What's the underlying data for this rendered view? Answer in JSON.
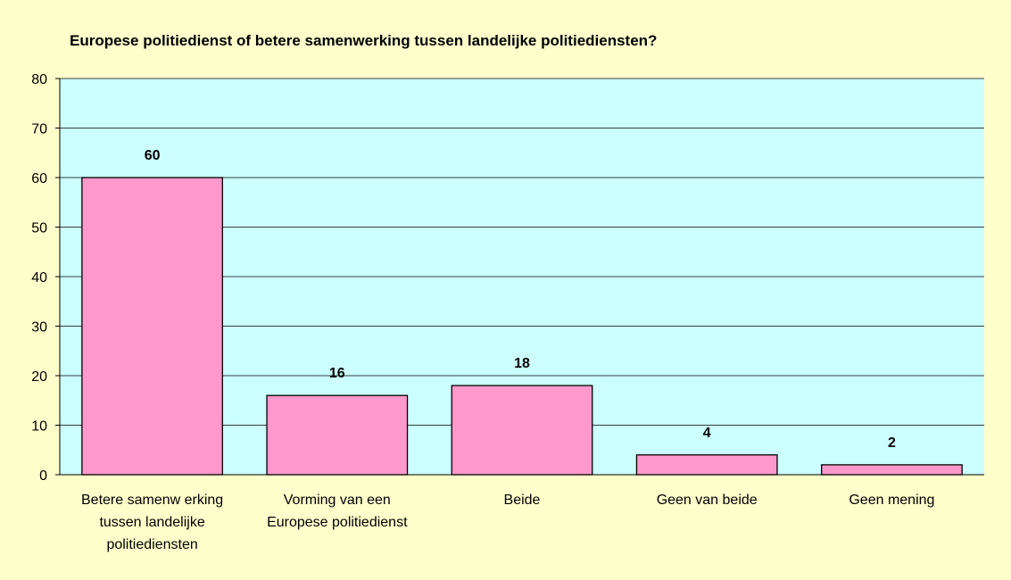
{
  "chart_data": {
    "type": "bar",
    "title": "Europese politiedienst of betere samenwerking tussen landelijke politiediensten?",
    "xlabel": "",
    "ylabel": "",
    "categories": [
      [
        "Betere samenw erking",
        "tussen landelijke",
        "politiediensten"
      ],
      [
        "Vorming van een",
        "Europese politiedienst"
      ],
      [
        "Beide"
      ],
      [
        "Geen van beide"
      ],
      [
        "Geen mening"
      ]
    ],
    "values": [
      60,
      16,
      18,
      4,
      2
    ],
    "value_labels": [
      "60",
      "16",
      "18",
      "4",
      "2"
    ],
    "ylim": [
      0,
      80
    ],
    "yticks": [
      0,
      10,
      20,
      30,
      40,
      50,
      60,
      70,
      80
    ],
    "ytick_labels": [
      "0",
      "10",
      "20",
      "30",
      "40",
      "50",
      "60",
      "70",
      "80"
    ],
    "grid": true,
    "legend": "none",
    "colors": {
      "page_background": "#ffffcc",
      "plot_background": "#ccffff",
      "bar_fill": "#ff99cc",
      "bar_stroke": "#000000",
      "gridline": "#000000"
    }
  }
}
